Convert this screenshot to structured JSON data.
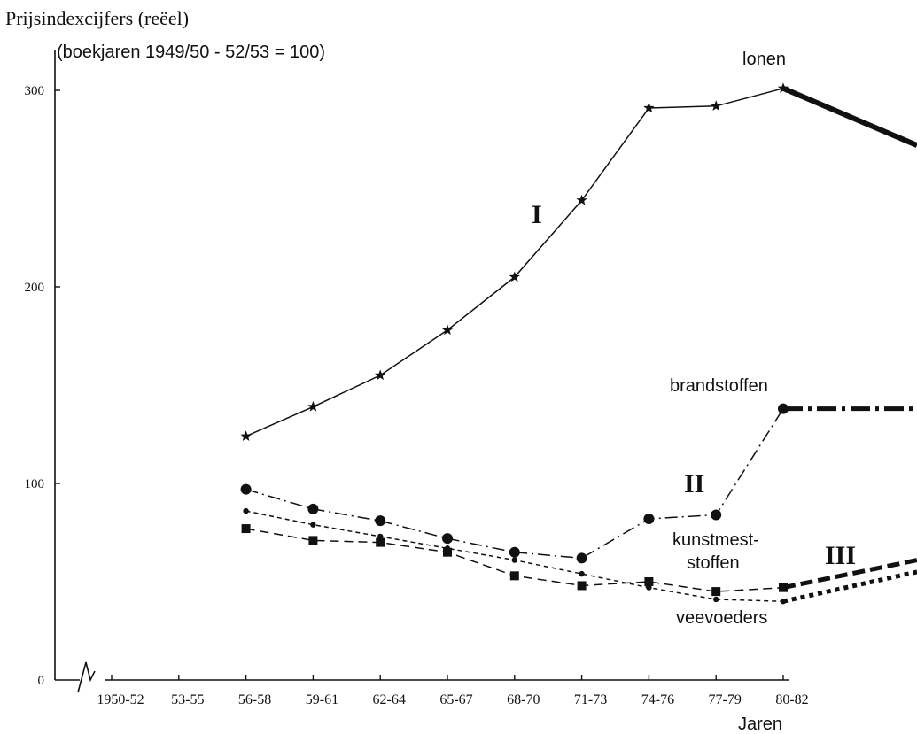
{
  "chart_data": {
    "type": "line",
    "title": "Prijsindexcijfers (reëel)",
    "subtitle": "(boekjaren 1949/50 - 52/53 = 100)",
    "xlabel": "Jaren",
    "ylabel": "",
    "categories": [
      "1950-52",
      "53-55",
      "56-58",
      "59-61",
      "62-64",
      "65-67",
      "68-70",
      "71-73",
      "74-76",
      "77-79",
      "80-82"
    ],
    "y_ticks": [
      "0",
      "100",
      "200",
      "300"
    ],
    "ylim": [
      0,
      310
    ],
    "grid": false,
    "axis_break": true,
    "series": [
      {
        "name": "lonen",
        "style": "solid-star",
        "color": "#111111",
        "values": [
          null,
          null,
          124,
          139,
          155,
          178,
          205,
          244,
          291,
          292,
          301
        ],
        "extension_end": 272
      },
      {
        "name": "brandstoffen",
        "style": "dash-dot-circle",
        "color": "#111111",
        "values": [
          null,
          null,
          97,
          87,
          81,
          72,
          65,
          62,
          82,
          84,
          138
        ],
        "extension_end": 138
      },
      {
        "name": "kunstmeststoffen",
        "style": "dashed-square",
        "color": "#111111",
        "values": [
          null,
          null,
          77,
          71,
          70,
          65,
          53,
          48,
          50,
          45,
          47
        ],
        "extension_end": 61
      },
      {
        "name": "veevoeders",
        "style": "short-dash-dot",
        "color": "#111111",
        "values": [
          null,
          null,
          86,
          79,
          73,
          67,
          61,
          54,
          47,
          41,
          40
        ],
        "extension_end": 55
      }
    ],
    "annotations": {
      "lonen": "lonen",
      "brandstoffen": "brandstoffen",
      "kunstmest_line1": "kunstmest-",
      "kunstmest_line2": "stoffen",
      "veevoeders": "veevoeders",
      "roman_I": "I",
      "roman_II": "II",
      "roman_III": "III"
    }
  }
}
